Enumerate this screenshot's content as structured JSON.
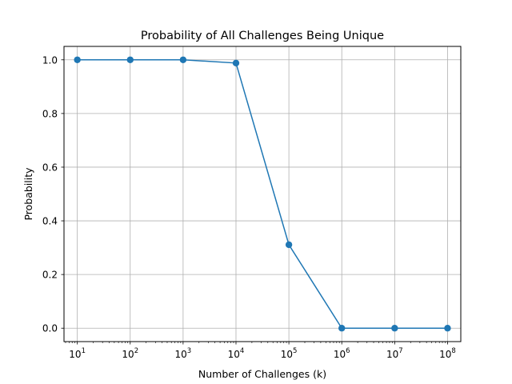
{
  "chart_data": {
    "type": "line",
    "title": "Probability of All Challenges Being Unique",
    "xlabel": "Number of Challenges (k)",
    "ylabel": "Probability",
    "x_scale": "log",
    "x_tick_exponents": [
      1,
      2,
      3,
      4,
      5,
      6,
      7,
      8
    ],
    "x_tick_base": "10",
    "y_ticks": [
      "0.0",
      "0.2",
      "0.4",
      "0.6",
      "0.8",
      "1.0"
    ],
    "y_tick_values": [
      0.0,
      0.2,
      0.4,
      0.6,
      0.8,
      1.0
    ],
    "xlim": [
      5.6,
      178000000
    ],
    "ylim": [
      -0.05,
      1.05
    ],
    "grid": true,
    "series": [
      {
        "color": "#1f77b4",
        "marker": "circle",
        "x": [
          10,
          100,
          1000,
          10000,
          100000,
          1000000,
          10000000,
          100000000
        ],
        "y": [
          1.0,
          1.0,
          1.0,
          0.988,
          0.311,
          0.0,
          0.0,
          0.0
        ]
      }
    ]
  }
}
